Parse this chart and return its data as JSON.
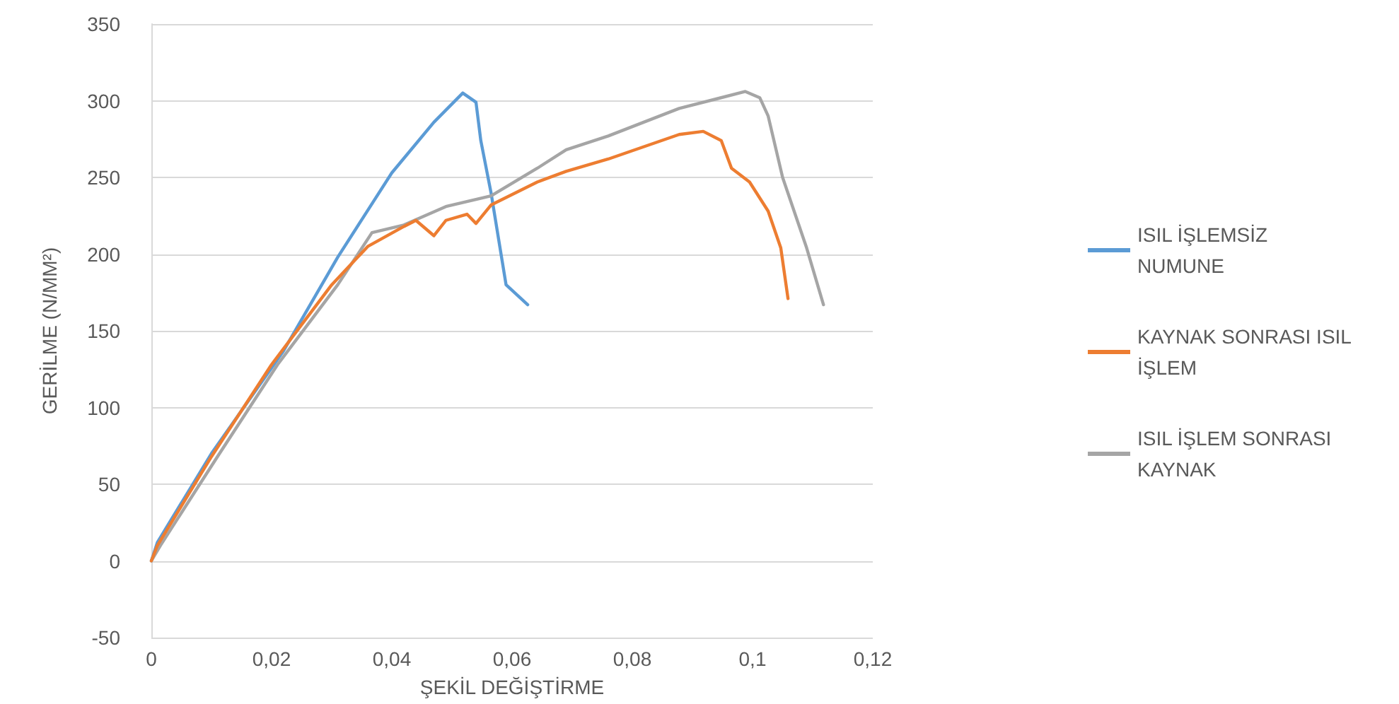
{
  "chart_data": {
    "type": "line",
    "xlabel": "ŞEKİL DEĞİŞTİRME",
    "ylabel": "GERİLME (N/MM²)",
    "xlim": [
      0,
      0.12
    ],
    "xticks": [
      {
        "value": 0,
        "label": "0"
      },
      {
        "value": 0.02,
        "label": "0,02"
      },
      {
        "value": 0.04,
        "label": "0,04"
      },
      {
        "value": 0.06,
        "label": "0,06"
      },
      {
        "value": 0.08,
        "label": "0,08"
      },
      {
        "value": 0.1,
        "label": "0,1"
      },
      {
        "value": 0.12,
        "label": "0,12"
      }
    ],
    "ylim": [
      -50,
      350
    ],
    "yticks": [
      -50,
      0,
      50,
      100,
      150,
      200,
      250,
      300,
      350
    ],
    "grid": "y",
    "legend": "right",
    "marker": "none",
    "line_style": "solid",
    "series": [
      {
        "name": "ISIL İŞLEMSİZ NUMUNE",
        "color": "#5b9bd5",
        "x": [
          0,
          0.001,
          0.01,
          0.022,
          0.031,
          0.04,
          0.047,
          0.0518,
          0.054,
          0.0548,
          0.0565,
          0.058,
          0.059,
          0.0626
        ],
        "values": [
          0,
          12,
          70,
          137,
          198,
          253,
          286,
          305,
          299,
          274,
          240,
          204,
          180,
          167
        ]
      },
      {
        "name": "KAYNAK SONRASI ISIL İŞLEM",
        "color": "#ed7d31",
        "x": [
          0,
          0.001,
          0.01,
          0.02,
          0.03,
          0.036,
          0.042,
          0.044,
          0.047,
          0.049,
          0.0525,
          0.054,
          0.0565,
          0.0642,
          0.069,
          0.076,
          0.0878,
          0.0918,
          0.0948,
          0.0965,
          0.0995,
          0.1026,
          0.1047,
          0.1059
        ],
        "values": [
          0,
          10,
          68,
          128,
          180,
          205,
          218,
          222,
          212,
          222,
          226,
          220,
          232,
          247,
          254,
          262,
          278,
          280,
          274,
          256,
          247,
          228,
          204,
          171
        ]
      },
      {
        "name": "ISIL İŞLEM SONRASI KAYNAK",
        "color": "#a5a5a5",
        "x": [
          0,
          0.0015,
          0.011,
          0.021,
          0.031,
          0.0367,
          0.042,
          0.049,
          0.0565,
          0.0642,
          0.069,
          0.076,
          0.0878,
          0.0988,
          0.1012,
          0.1026,
          0.105,
          0.109,
          0.1118
        ],
        "values": [
          0,
          10,
          68,
          128,
          180,
          214,
          219,
          231,
          238,
          256,
          268,
          277,
          295,
          306,
          302,
          290,
          250,
          204,
          167
        ]
      }
    ]
  }
}
